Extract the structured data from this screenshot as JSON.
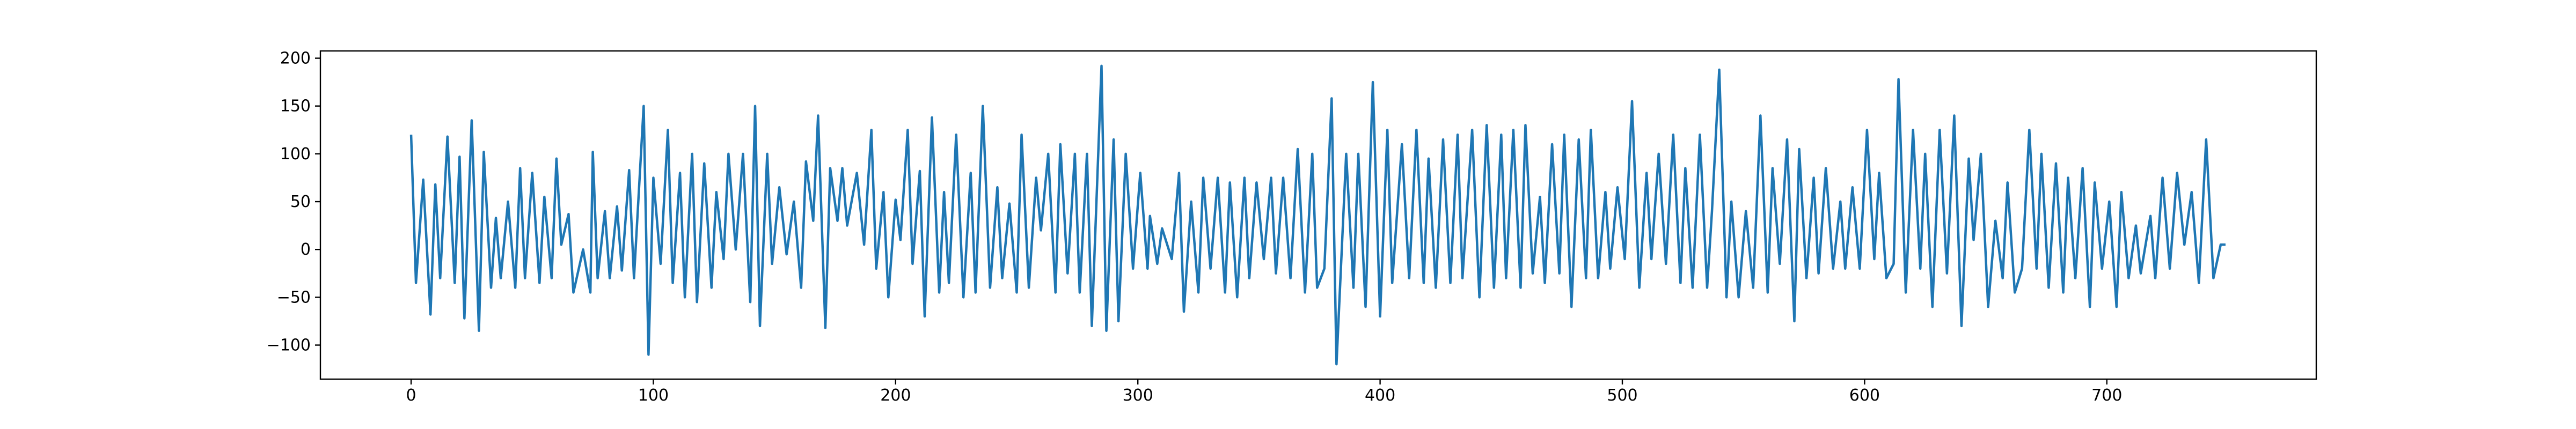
{
  "chart_data": {
    "type": "line",
    "color": "#1f77b4",
    "x": [
      0,
      2,
      5,
      8,
      10,
      12,
      15,
      18,
      20,
      22,
      25,
      28,
      30,
      33,
      35,
      37,
      40,
      43,
      45,
      47,
      50,
      53,
      55,
      58,
      60,
      62,
      65,
      67,
      71,
      74,
      75,
      77,
      80,
      82,
      85,
      87,
      90,
      92,
      96,
      98,
      100,
      103,
      106,
      108,
      111,
      113,
      116,
      118,
      121,
      124,
      126,
      129,
      131,
      134,
      137,
      140,
      142,
      144,
      147,
      149,
      152,
      155,
      158,
      161,
      163,
      166,
      168,
      171,
      173,
      176,
      178,
      180,
      184,
      187,
      190,
      192,
      195,
      197,
      200,
      202,
      205,
      207,
      210,
      212,
      215,
      218,
      220,
      222,
      225,
      228,
      231,
      233,
      236,
      239,
      242,
      244,
      247,
      250,
      252,
      255,
      258,
      260,
      263,
      266,
      268,
      271,
      274,
      276,
      279,
      281,
      285,
      287,
      290,
      292,
      295,
      298,
      301,
      304,
      305,
      308,
      310,
      314,
      317,
      319,
      322,
      325,
      327,
      330,
      333,
      336,
      338,
      341,
      344,
      346,
      349,
      352,
      355,
      357,
      360,
      363,
      366,
      369,
      372,
      374,
      377,
      380,
      382,
      386,
      389,
      391,
      394,
      397,
      400,
      403,
      405,
      409,
      412,
      415,
      418,
      420,
      423,
      426,
      429,
      432,
      434,
      438,
      441,
      444,
      447,
      450,
      452,
      455,
      458,
      460,
      463,
      466,
      468,
      471,
      474,
      476,
      479,
      482,
      485,
      487,
      490,
      493,
      495,
      498,
      501,
      504,
      507,
      510,
      512,
      515,
      518,
      521,
      524,
      526,
      529,
      532,
      535,
      537,
      540,
      543,
      545,
      548,
      551,
      554,
      557,
      560,
      562,
      565,
      568,
      571,
      573,
      576,
      579,
      581,
      584,
      587,
      590,
      592,
      595,
      598,
      601,
      604,
      606,
      609,
      612,
      614,
      617,
      620,
      623,
      625,
      628,
      631,
      634,
      637,
      640,
      643,
      645,
      648,
      651,
      654,
      657,
      659,
      662,
      665,
      668,
      671,
      673,
      676,
      679,
      682,
      684,
      687,
      690,
      693,
      695,
      698,
      701,
      704,
      706,
      709,
      712,
      714,
      718,
      720,
      723,
      726,
      729,
      732,
      735,
      738,
      741,
      744,
      747,
      749
    ],
    "values": [
      120,
      -35,
      73,
      -68,
      68,
      -30,
      118,
      -35,
      97,
      -72,
      135,
      -85,
      102,
      -40,
      33,
      -30,
      50,
      -40,
      85,
      -30,
      80,
      -35,
      55,
      -30,
      95,
      5,
      37,
      -45,
      0,
      -45,
      102,
      -30,
      40,
      -30,
      45,
      -22,
      83,
      -30,
      150,
      -110,
      75,
      -15,
      125,
      -35,
      80,
      -50,
      100,
      -55,
      90,
      -40,
      60,
      -10,
      100,
      0,
      100,
      -55,
      150,
      -80,
      100,
      -15,
      65,
      -5,
      50,
      -40,
      92,
      30,
      140,
      -82,
      85,
      30,
      85,
      25,
      80,
      5,
      125,
      -20,
      60,
      -50,
      52,
      10,
      125,
      -15,
      82,
      -70,
      138,
      -45,
      60,
      -35,
      120,
      -50,
      80,
      -45,
      150,
      -40,
      65,
      -30,
      48,
      -45,
      120,
      -40,
      75,
      20,
      100,
      -45,
      110,
      -25,
      100,
      -45,
      100,
      -80,
      192,
      -85,
      115,
      -75,
      100,
      -20,
      80,
      -20,
      35,
      -15,
      22,
      -10,
      80,
      -65,
      50,
      -45,
      75,
      -20,
      75,
      -45,
      70,
      -50,
      75,
      -30,
      70,
      -10,
      75,
      -25,
      75,
      -30,
      105,
      -45,
      100,
      -40,
      -20,
      158,
      -120,
      100,
      -40,
      100,
      -60,
      175,
      -70,
      125,
      -35,
      110,
      -30,
      125,
      -35,
      95,
      -40,
      115,
      -35,
      120,
      -30,
      125,
      -50,
      130,
      -40,
      120,
      -30,
      125,
      -40,
      130,
      -25,
      55,
      -35,
      110,
      -25,
      120,
      -60,
      115,
      -30,
      125,
      -30,
      60,
      -20,
      65,
      -10,
      155,
      -40,
      80,
      -10,
      100,
      -15,
      120,
      -35,
      85,
      -40,
      120,
      -40,
      40,
      188,
      -50,
      50,
      -50,
      40,
      -40,
      140,
      -45,
      85,
      -15,
      115,
      -75,
      105,
      -30,
      75,
      -25,
      85,
      -20,
      50,
      -20,
      65,
      -20,
      125,
      -10,
      80,
      -30,
      -15,
      178,
      -45,
      125,
      -20,
      100,
      -60,
      125,
      -25,
      140,
      -80,
      95,
      10,
      100,
      -60,
      30,
      -30,
      70,
      -45,
      -20,
      125,
      -20,
      100,
      -40,
      90,
      -45,
      75,
      -30,
      85,
      -60,
      70,
      -20,
      50,
      -60,
      60,
      -30,
      25,
      -25,
      35,
      -30,
      75,
      -20,
      80,
      5,
      60,
      -35,
      115,
      -30,
      5,
      5
    ],
    "xlim": [
      -37.45,
      786.45
    ],
    "ylim": [
      -135.6,
      207.6
    ],
    "xticks": [
      0,
      100,
      200,
      300,
      400,
      500,
      600,
      700
    ],
    "yticks": [
      {
        "value": -100,
        "label": "−100"
      },
      {
        "value": -50,
        "label": "−50"
      },
      0,
      50,
      100,
      150,
      200
    ]
  }
}
